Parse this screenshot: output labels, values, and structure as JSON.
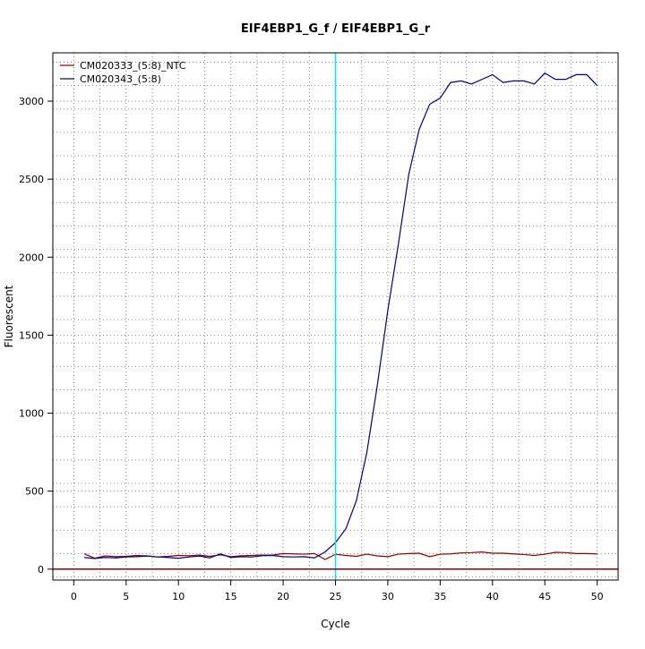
{
  "chart_data": {
    "type": "line",
    "title": "EIF4EBP1_G_f / EIF4EBP1_G_r",
    "xlabel": "Cycle",
    "ylabel": "Fluorescent",
    "xlim": [
      -2,
      52
    ],
    "ylim": [
      -70,
      3310
    ],
    "x_ticks": [
      0,
      5,
      10,
      15,
      20,
      25,
      30,
      35,
      40,
      45,
      50
    ],
    "y_ticks": [
      0,
      500,
      1000,
      1500,
      2000,
      2500,
      3000
    ],
    "x_grid": [
      2.5,
      7.5,
      12.5,
      17.5,
      22.5,
      27.5,
      32.5,
      37.5,
      42.5,
      47.5
    ],
    "y_grid": [
      -50,
      100,
      250,
      400,
      550,
      700,
      850,
      1000,
      1150,
      1300,
      1450,
      1600,
      1750,
      1900,
      2050,
      2200,
      2350,
      2500,
      2650,
      2800,
      2950,
      3100,
      3250
    ],
    "grid": true,
    "legend_position": "top-left",
    "threshold": {
      "x": 25,
      "color": "#00e5ee"
    },
    "baseline": {
      "y": 0,
      "color": "#8b0000"
    },
    "x": [
      1,
      2,
      3,
      4,
      5,
      6,
      7,
      8,
      9,
      10,
      11,
      12,
      13,
      14,
      15,
      16,
      17,
      18,
      19,
      20,
      21,
      22,
      23,
      24,
      25,
      26,
      27,
      28,
      29,
      30,
      31,
      32,
      33,
      34,
      35,
      36,
      37,
      38,
      39,
      40,
      41,
      42,
      43,
      44,
      45,
      46,
      47,
      48,
      49,
      50
    ],
    "series": [
      {
        "name": "CM020333_(5:8)_NTC",
        "color": "#8b0000",
        "values": [
          98,
          70,
          85,
          80,
          82,
          88,
          85,
          78,
          82,
          88,
          86,
          90,
          82,
          92,
          80,
          86,
          88,
          90,
          90,
          100,
          98,
          96,
          100,
          62,
          95,
          88,
          82,
          96,
          85,
          80,
          96,
          100,
          102,
          80,
          96,
          98,
          104,
          106,
          110,
          102,
          102,
          98,
          94,
          88,
          96,
          108,
          106,
          100,
          100,
          98
        ]
      },
      {
        "name": "CM020343_(5:8)",
        "color": "#000080",
        "values": [
          75,
          68,
          75,
          72,
          78,
          80,
          84,
          78,
          75,
          70,
          78,
          84,
          72,
          98,
          75,
          80,
          78,
          86,
          88,
          80,
          78,
          80,
          72,
          110,
          170,
          260,
          440,
          750,
          1180,
          1660,
          2080,
          2530,
          2820,
          2980,
          3020,
          3120,
          3130,
          3110,
          3140,
          3170,
          3120,
          3130,
          3130,
          3110,
          3180,
          3140,
          3140,
          3170,
          3170,
          3100
        ]
      }
    ]
  }
}
